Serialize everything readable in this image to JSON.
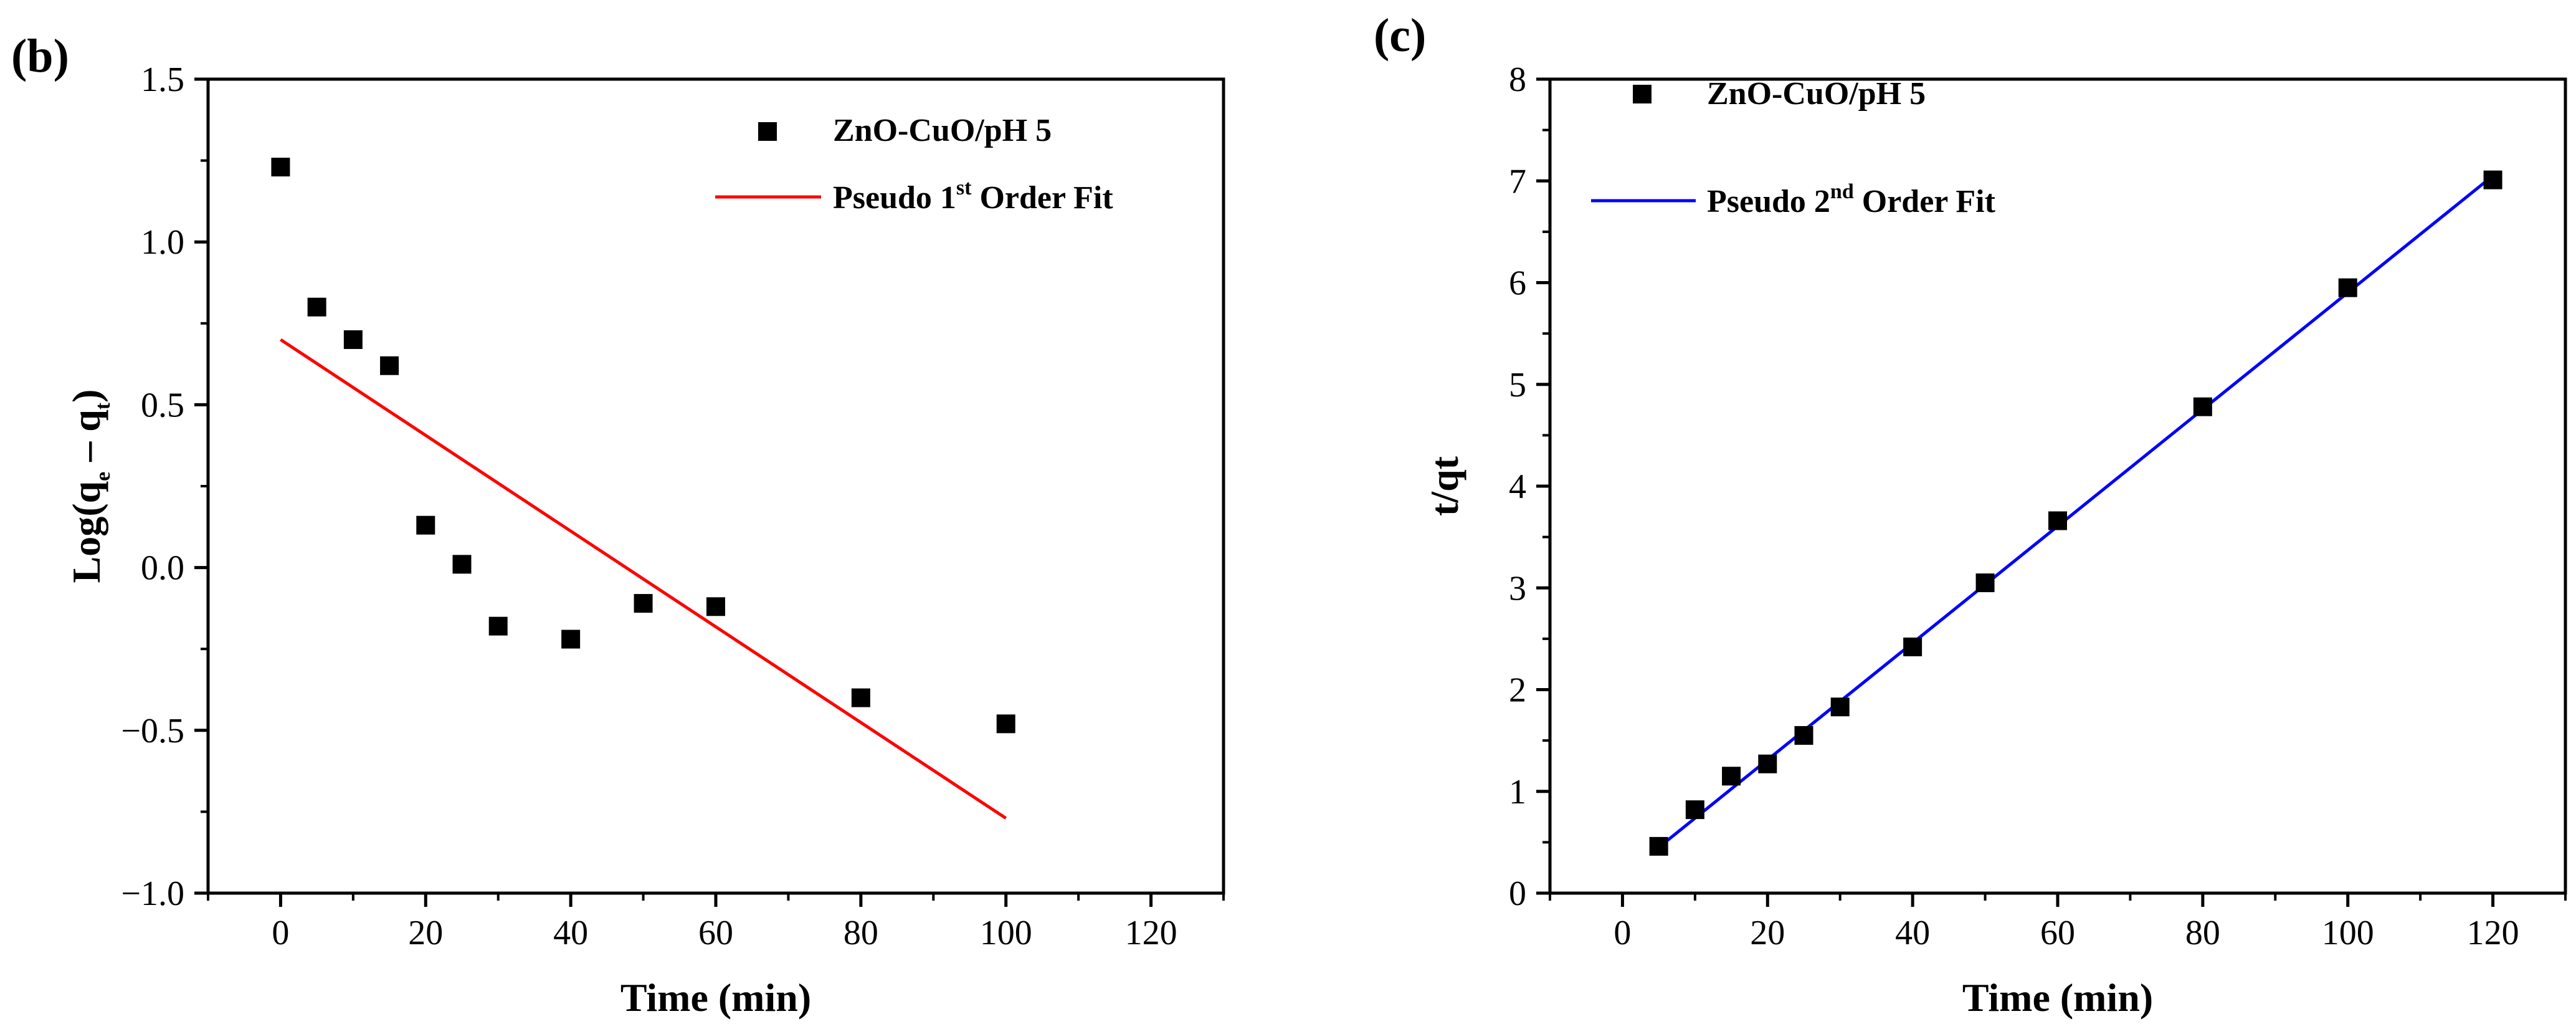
{
  "chart_data": [
    {
      "type": "scatter",
      "panel_label": "(b)",
      "xlabel": "Time (min)",
      "ylabel_main": "Log(q",
      "ylabel_sub1": "e",
      "ylabel_mid": " – q",
      "ylabel_sub2": "t",
      "ylabel_end": ")",
      "xlim": [
        -10,
        130
      ],
      "ylim": [
        -1.0,
        1.5
      ],
      "xticks": [
        0,
        20,
        40,
        60,
        80,
        100,
        120
      ],
      "yticks": [
        -1.0,
        -0.5,
        0.0,
        0.5,
        1.0,
        1.5
      ],
      "ytick_labels": [
        "−1.0",
        "−0.5",
        "0.0",
        "0.5",
        "1.0",
        "1.5"
      ],
      "legend_position": "top-right",
      "series": [
        {
          "name": "ZnO-CuO/pH 5",
          "kind": "scatter",
          "color": "#000000",
          "x": [
            0,
            5,
            10,
            15,
            20,
            25,
            30,
            40,
            50,
            60,
            80,
            100
          ],
          "y": [
            1.23,
            0.8,
            0.7,
            0.62,
            0.13,
            0.01,
            -0.18,
            -0.22,
            -0.11,
            -0.12,
            -0.4,
            -0.48
          ]
        },
        {
          "name": "Pseudo 1st Order Fit",
          "name_prefix": "Pseudo 1",
          "name_sup": "st",
          "name_suffix": " Order Fit",
          "kind": "line",
          "color": "#ff0000",
          "x": [
            0,
            100
          ],
          "y": [
            0.7,
            -0.77
          ]
        }
      ]
    },
    {
      "type": "scatter",
      "panel_label": "(c)",
      "xlabel": "Time (min)",
      "ylabel": "t/qt",
      "xlim": [
        -10,
        130
      ],
      "ylim": [
        0,
        8
      ],
      "xticks": [
        0,
        20,
        40,
        60,
        80,
        100,
        120
      ],
      "yticks": [
        0,
        1,
        2,
        3,
        4,
        5,
        6,
        7,
        8
      ],
      "ytick_labels": [
        "0",
        "1",
        "2",
        "3",
        "4",
        "5",
        "6",
        "7",
        "8"
      ],
      "legend_position": "top-left",
      "series": [
        {
          "name": "ZnO-CuO/pH 5",
          "kind": "scatter",
          "color": "#000000",
          "x": [
            5,
            10,
            15,
            20,
            25,
            30,
            40,
            50,
            60,
            80,
            100,
            120
          ],
          "y": [
            0.46,
            0.82,
            1.15,
            1.27,
            1.55,
            1.83,
            2.42,
            3.05,
            3.66,
            4.78,
            5.95,
            7.01
          ]
        },
        {
          "name": "Pseudo 2nd Order Fit",
          "name_prefix": "Pseudo 2",
          "name_sup": "nd",
          "name_suffix": " Order Fit",
          "kind": "line",
          "color": "#0000ff",
          "x": [
            5,
            120
          ],
          "y": [
            0.45,
            7.05
          ]
        }
      ]
    }
  ]
}
